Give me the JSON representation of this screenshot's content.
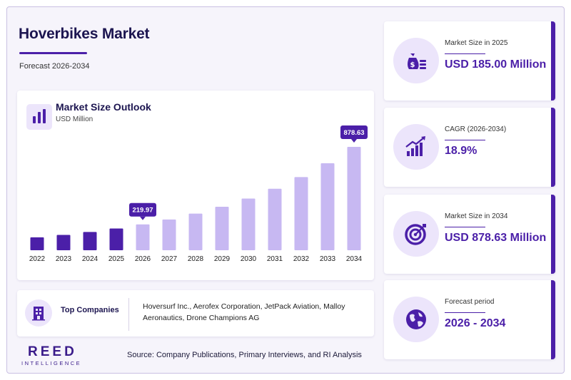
{
  "header": {
    "title": "Hoverbikes Market",
    "subtitle": "Forecast 2026-2034"
  },
  "chart_data": {
    "type": "bar",
    "title": "Market Size Outlook",
    "ylabel": "USD Million",
    "categories": [
      "2022",
      "2023",
      "2024",
      "2025",
      "2026",
      "2027",
      "2028",
      "2029",
      "2030",
      "2031",
      "2032",
      "2033",
      "2034"
    ],
    "values": [
      110,
      130,
      155,
      185.0,
      219.97,
      261.6,
      311.0,
      369.8,
      439.7,
      522.8,
      621.6,
      739.1,
      878.63
    ],
    "historical_years": [
      "2022",
      "2023",
      "2024",
      "2025"
    ],
    "data_labels": [
      {
        "category": "2026",
        "label": "219.97"
      },
      {
        "category": "2034",
        "label": "878.63"
      }
    ],
    "colors": {
      "historical": "#4b1fa8",
      "forecast": "#c7b8f2",
      "label_bg": "#4b1fa8"
    },
    "ylim": [
      0,
      1000
    ],
    "grid": false
  },
  "companies": {
    "label": "Top Companies",
    "list": "Hoversurf Inc., Aerofex Corporation, JetPack Aviation, Malloy Aeronautics, Drone Champions AG"
  },
  "footer": {
    "logo_main": "REED",
    "logo_sub": "INTELLIGENCE",
    "source": "Source: Company Publications, Primary Interviews, and RI Analysis"
  },
  "kpis": [
    {
      "label": "Market Size in 2025",
      "value": "USD 185.00 Million",
      "icon": "money-bag-icon"
    },
    {
      "label": "CAGR (2026-2034)",
      "value": "18.9%",
      "icon": "growth-chart-icon"
    },
    {
      "label": "Market Size in 2034",
      "value": "USD 878.63 Million",
      "icon": "target-icon"
    },
    {
      "label": "Forecast period",
      "value": "2026 - 2034",
      "icon": "globe-icon"
    }
  ],
  "colors": {
    "accent": "#4b1fa8",
    "light_accent": "#ece5fb",
    "title": "#1c1550"
  }
}
